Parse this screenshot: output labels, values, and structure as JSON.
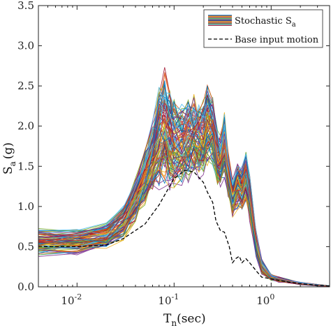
{
  "chart_data": {
    "type": "line",
    "xlabel": "T",
    "xlabel_sub": "n",
    "xlabel_unit": "(sec)",
    "ylabel": "S",
    "ylabel_sub": "a",
    "ylabel_unit": "(g)",
    "xscale": "log",
    "xlim": [
      0.004,
      4
    ],
    "ylim": [
      0,
      3.5
    ],
    "x_major_ticks": [
      {
        "value": 0.01,
        "base": "10",
        "exp": "-2"
      },
      {
        "value": 0.1,
        "base": "10",
        "exp": "-1"
      },
      {
        "value": 1,
        "base": "10",
        "exp": "0"
      }
    ],
    "yticks": [
      {
        "value": 0,
        "label": "0.0"
      },
      {
        "value": 0.5,
        "label": "0.5"
      },
      {
        "value": 1.0,
        "label": "1.0"
      },
      {
        "value": 1.5,
        "label": "1.5"
      },
      {
        "value": 2.0,
        "label": "2.0"
      },
      {
        "value": 2.5,
        "label": "2.5"
      },
      {
        "value": 3.0,
        "label": "3.0"
      },
      {
        "value": 3.5,
        "label": "3.5"
      }
    ],
    "legend": {
      "position": "top-right",
      "entries": [
        {
          "label": "Stochastic S",
          "label_sub": "a",
          "style": "multicolor-solid"
        },
        {
          "label": "Base input motion",
          "style": "black-dashed"
        }
      ]
    },
    "series": [
      {
        "name": "Base input motion",
        "color": "#000000",
        "dash": "dashed",
        "x": [
          0.004,
          0.01,
          0.02,
          0.03,
          0.05,
          0.07,
          0.1,
          0.13,
          0.16,
          0.2,
          0.22,
          0.25,
          0.27,
          0.3,
          0.33,
          0.37,
          0.4,
          0.43,
          0.47,
          0.5,
          0.55,
          0.6,
          0.7,
          0.8,
          1.0,
          1.2,
          1.5,
          2.0,
          3.0,
          4.0
        ],
        "values": [
          0.5,
          0.5,
          0.52,
          0.6,
          0.78,
          1.02,
          1.35,
          1.45,
          1.43,
          1.3,
          1.18,
          1.05,
          0.82,
          0.7,
          0.68,
          0.5,
          0.3,
          0.35,
          0.38,
          0.3,
          0.35,
          0.3,
          0.2,
          0.12,
          0.1,
          0.08,
          0.06,
          0.04,
          0.02,
          0.01
        ]
      }
    ],
    "stochastic_envelope": {
      "name": "Stochastic S_a",
      "count": 100,
      "x": [
        0.004,
        0.01,
        0.02,
        0.03,
        0.04,
        0.05,
        0.06,
        0.07,
        0.08,
        0.09,
        0.1,
        0.12,
        0.14,
        0.16,
        0.18,
        0.2,
        0.22,
        0.25,
        0.28,
        0.3,
        0.33,
        0.36,
        0.4,
        0.45,
        0.5,
        0.55,
        0.6,
        0.7,
        0.8,
        1.0,
        1.2,
        1.5,
        2.0,
        3.0,
        4.0
      ],
      "mean": [
        0.55,
        0.56,
        0.62,
        0.78,
        1.05,
        1.35,
        1.6,
        1.85,
        1.95,
        1.85,
        1.8,
        1.75,
        1.8,
        1.85,
        1.8,
        1.85,
        2.0,
        1.9,
        1.6,
        1.55,
        1.75,
        1.4,
        1.1,
        1.25,
        1.2,
        1.35,
        1.1,
        0.55,
        0.25,
        0.12,
        0.09,
        0.07,
        0.04,
        0.02,
        0.01
      ],
      "spread": [
        0.15,
        0.15,
        0.15,
        0.2,
        0.25,
        0.3,
        0.4,
        0.55,
        0.65,
        0.55,
        0.5,
        0.45,
        0.45,
        0.45,
        0.4,
        0.42,
        0.45,
        0.4,
        0.3,
        0.3,
        0.35,
        0.25,
        0.2,
        0.25,
        0.25,
        0.28,
        0.25,
        0.15,
        0.08,
        0.04,
        0.03,
        0.02,
        0.015,
        0.01,
        0.005
      ]
    }
  }
}
